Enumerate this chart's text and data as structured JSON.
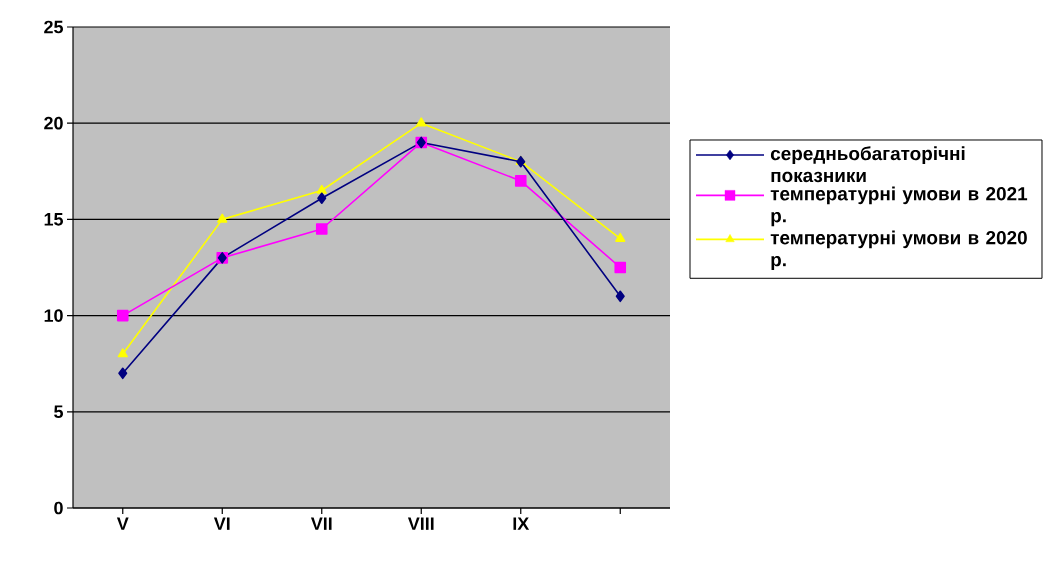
{
  "chart_data": {
    "type": "line",
    "categories": [
      "V",
      "VI",
      "VII",
      "VIII",
      "IX",
      null
    ],
    "series": [
      {
        "name": "середньобагаторічні показники",
        "color": "#000080",
        "marker": "diamond",
        "values": [
          7,
          13,
          16.1,
          19,
          18,
          11
        ]
      },
      {
        "name": "температурні умови в 2021 р.",
        "color": "#ff00ff",
        "marker": "square",
        "values": [
          10,
          13,
          14.5,
          19,
          17,
          12.5
        ]
      },
      {
        "name": "температурні умови в 2020 р.",
        "color": "#ffff00",
        "marker": "triangle",
        "values": [
          8,
          15,
          16.5,
          20,
          18,
          14
        ]
      }
    ],
    "ylim": [
      0,
      25
    ],
    "yticks": [
      0,
      5,
      10,
      15,
      20,
      25
    ],
    "grid": "y",
    "legend": "right",
    "line_style": "solid"
  }
}
